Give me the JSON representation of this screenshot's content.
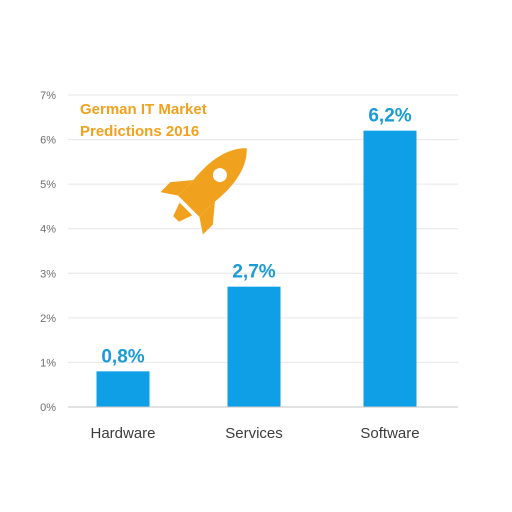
{
  "chart_data": {
    "type": "bar",
    "title_lines": [
      "German IT Market",
      "Predictions 2016"
    ],
    "categories": [
      "Hardware",
      "Services",
      "Software"
    ],
    "values": [
      0.8,
      2.7,
      6.2
    ],
    "data_labels": [
      "0,8%",
      "2,7%",
      "6,2%"
    ],
    "y_ticks": [
      {
        "value": 0,
        "label": "0%"
      },
      {
        "value": 1,
        "label": "1%"
      },
      {
        "value": 2,
        "label": "2%"
      },
      {
        "value": 3,
        "label": "3%"
      },
      {
        "value": 4,
        "label": "4%"
      },
      {
        "value": 5,
        "label": "5%"
      },
      {
        "value": 6,
        "label": "6%"
      },
      {
        "value": 7,
        "label": "7%"
      }
    ],
    "ylim": [
      0,
      7
    ],
    "grid": true,
    "legend": "none",
    "colors": {
      "bar": "#0f9fe6",
      "data_label": "#1a9ad6",
      "title": "#f0a21e",
      "icon": "#f0a21e",
      "grid": "#e6e6e6",
      "axis": "#c4c4c4"
    },
    "icon": "rocket-icon"
  }
}
